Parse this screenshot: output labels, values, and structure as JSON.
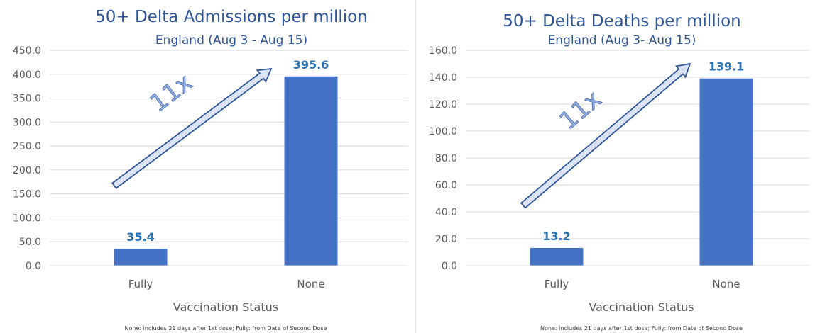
{
  "colors": {
    "bar": "#4472C4",
    "title": "#2F5597",
    "subtitle": "#2F5597",
    "data_label": "#2E75B6",
    "axis_text": "#595959",
    "grid": "#d9d9d9",
    "arrow_fill": "#dbe4f4",
    "arrow_stroke": "#2F5597",
    "annotation": "#8faadc"
  },
  "chart_data": [
    {
      "type": "bar",
      "title": "50+ Delta Admissions per million",
      "subtitle": "England (Aug 3 - Aug 15)",
      "categories": [
        "Fully",
        "None"
      ],
      "values": [
        35.4,
        395.6
      ],
      "data_labels": [
        "35.4",
        "395.6"
      ],
      "xlabel": "Vaccination Status",
      "ylabel": "",
      "ylim": [
        0,
        450
      ],
      "yticks": [
        0,
        50,
        100,
        150,
        200,
        250,
        300,
        350,
        400,
        450
      ],
      "ytick_labels": [
        "0.0",
        "50.0",
        "100.0",
        "150.0",
        "200.0",
        "250.0",
        "300.0",
        "350.0",
        "400.0",
        "450.0"
      ],
      "grid": true,
      "legend": "none",
      "annotation": "11x",
      "footnote": "None: includes 21 days after 1st dose; Fully: from Date of Second Dose"
    },
    {
      "type": "bar",
      "title": "50+ Delta Deaths per million",
      "subtitle": "England (Aug 3- Aug 15)",
      "categories": [
        "Fully",
        "None"
      ],
      "values": [
        13.2,
        139.1
      ],
      "data_labels": [
        "13.2",
        "139.1"
      ],
      "xlabel": "Vaccination Status",
      "ylabel": "",
      "ylim": [
        0,
        160
      ],
      "yticks": [
        0,
        20,
        40,
        60,
        80,
        100,
        120,
        140,
        160
      ],
      "ytick_labels": [
        "0.0",
        "20.0",
        "40.0",
        "60.0",
        "80.0",
        "100.0",
        "120.0",
        "140.0",
        "160.0"
      ],
      "grid": true,
      "legend": "none",
      "annotation": "11x",
      "footnote": "None: includes 21 days after 1st dose; Fully: from Date of Second Dose"
    }
  ]
}
